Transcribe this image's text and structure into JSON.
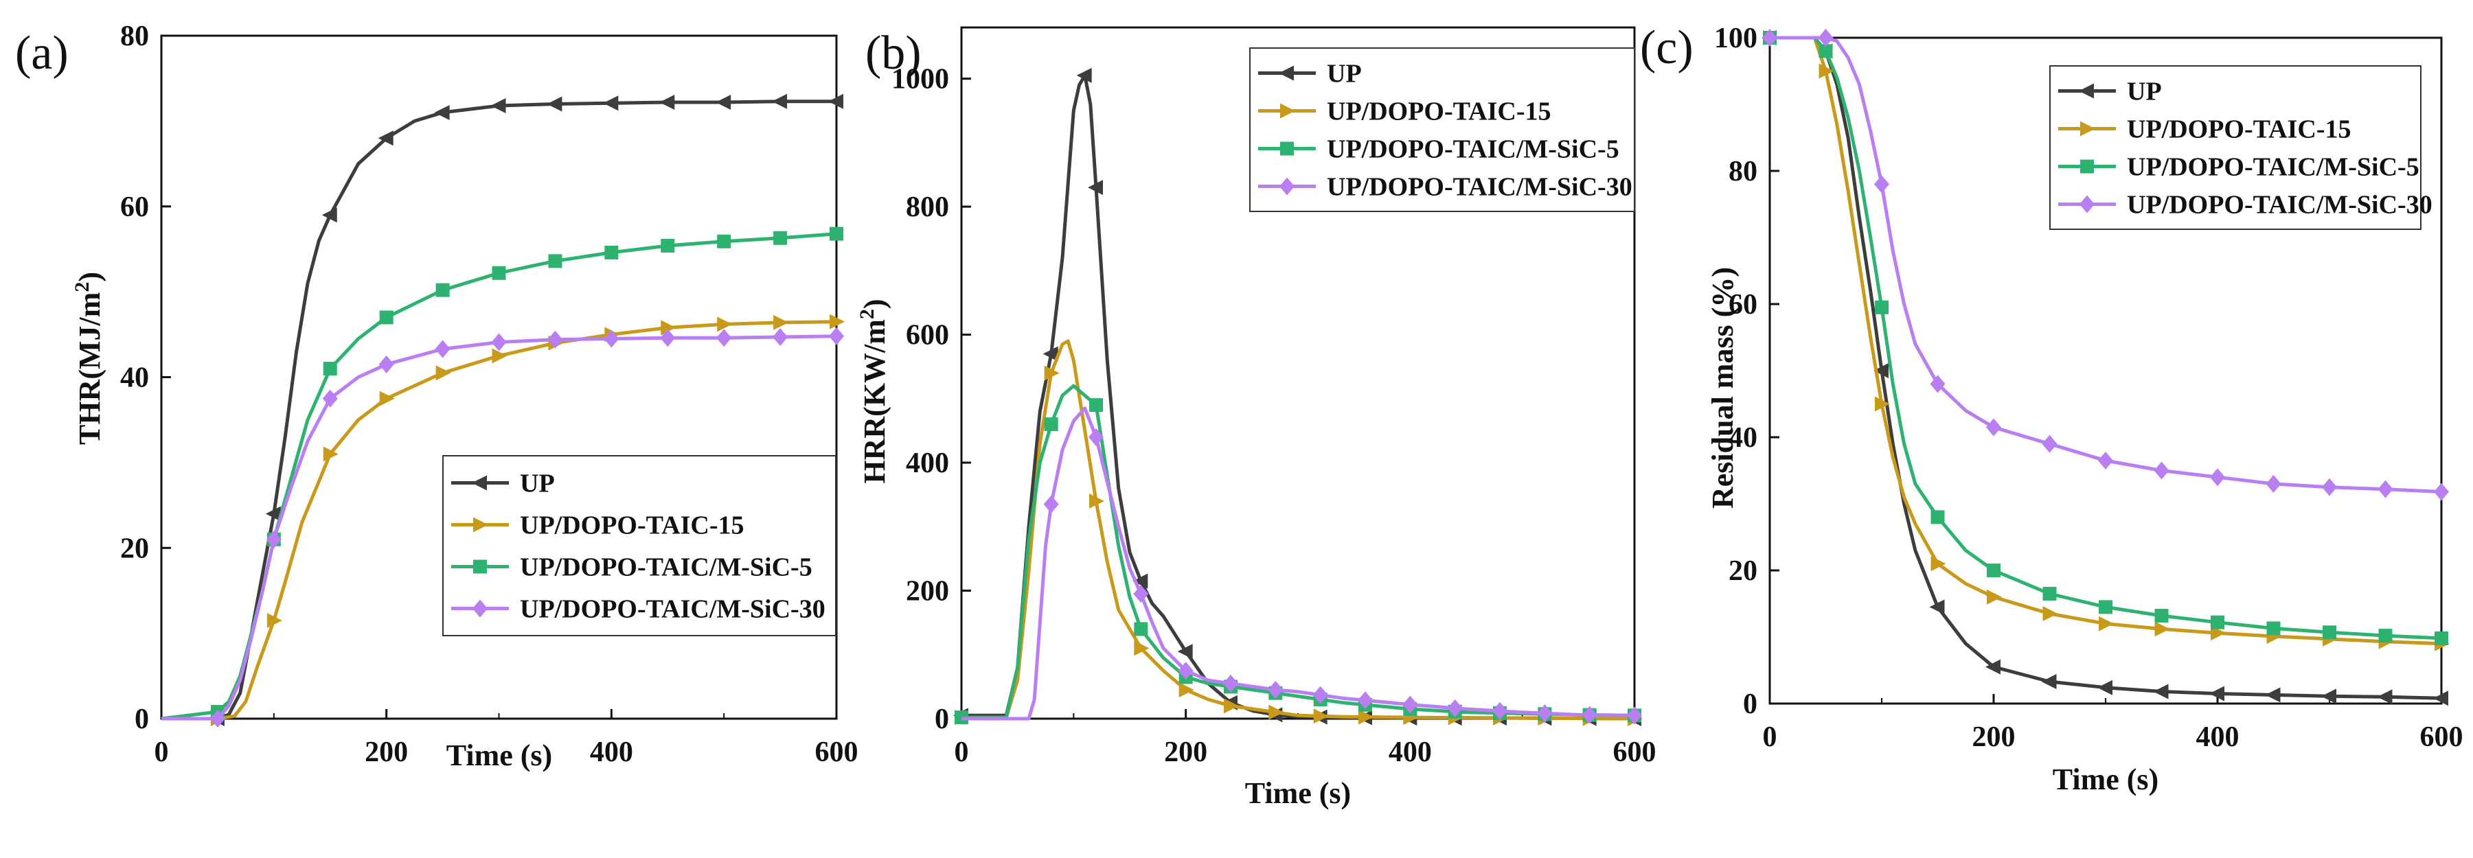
{
  "figure": {
    "description_free": true
  },
  "colors": {
    "UP": "#3d3d3d",
    "UP/DOPO-TAIC-15": "#c99a1a",
    "UP/DOPO-TAIC/M-SiC-5": "#2db36f",
    "UP/DOPO-TAIC/M-SiC-30": "#b97ef2",
    "axis": "#111111"
  },
  "chart_data": [
    {
      "panel_label": "(a)",
      "type": "line",
      "title": "",
      "xlabel": "Time (s)",
      "ylabel": "THR(MJ/m2)",
      "ylabel_main": "THR(MJ/m",
      "ylabel_sup": "2",
      "ylabel_close": ")",
      "xlim": [
        0,
        600
      ],
      "ylim": [
        0,
        80
      ],
      "xticks": [
        0,
        200,
        400,
        600
      ],
      "yticks": [
        0,
        20,
        40,
        60,
        80
      ],
      "xtick_labels": [
        "0",
        "200",
        "400",
        "600"
      ],
      "ytick_labels": [
        "0",
        "20",
        "40",
        "60",
        "80"
      ],
      "legend_position": "center-right",
      "series": [
        {
          "name": "UP",
          "marker": "triangle-left",
          "x": [
            0,
            50,
            60,
            70,
            80,
            90,
            100,
            110,
            120,
            130,
            140,
            150,
            175,
            200,
            225,
            250,
            300,
            350,
            400,
            450,
            500,
            550,
            600
          ],
          "y": [
            0,
            0,
            0.5,
            3,
            10,
            17,
            24,
            33,
            43,
            51,
            56,
            59,
            65,
            68,
            70,
            71,
            71.8,
            72,
            72.1,
            72.2,
            72.2,
            72.3,
            72.3
          ],
          "marker_x": [
            50,
            100,
            150,
            200,
            250,
            300,
            350,
            400,
            450,
            500,
            550,
            600
          ]
        },
        {
          "name": "UP/DOPO-TAIC-15",
          "marker": "triangle-right",
          "x": [
            0,
            50,
            65,
            75,
            85,
            100,
            110,
            125,
            150,
            175,
            200,
            250,
            300,
            350,
            400,
            450,
            500,
            550,
            600
          ],
          "y": [
            0,
            0,
            0.3,
            2,
            6,
            11.5,
            16,
            23,
            31,
            35,
            37.5,
            40.5,
            42.5,
            44,
            45,
            45.8,
            46.2,
            46.4,
            46.5
          ],
          "marker_x": [
            50,
            100,
            150,
            200,
            250,
            300,
            350,
            400,
            450,
            500,
            550,
            600
          ]
        },
        {
          "name": "UP/DOPO-TAIC/M-SiC-5",
          "marker": "square",
          "x": [
            0,
            50,
            60,
            70,
            80,
            90,
            100,
            115,
            130,
            150,
            175,
            200,
            250,
            300,
            350,
            400,
            450,
            500,
            550,
            600
          ],
          "y": [
            0,
            0.8,
            2,
            5,
            10,
            15,
            21,
            28,
            35,
            41,
            44.5,
            47,
            50.2,
            52.2,
            53.6,
            54.6,
            55.4,
            55.9,
            56.3,
            56.8
          ],
          "marker_x": [
            50,
            100,
            150,
            200,
            250,
            300,
            350,
            400,
            450,
            500,
            550,
            600
          ]
        },
        {
          "name": "UP/DOPO-TAIC/M-SiC-30",
          "marker": "diamond",
          "x": [
            0,
            50,
            60,
            70,
            80,
            90,
            100,
            115,
            130,
            150,
            175,
            200,
            250,
            300,
            350,
            400,
            450,
            500,
            550,
            600
          ],
          "y": [
            0,
            0,
            1.5,
            4.5,
            9.5,
            15,
            21,
            27,
            32.5,
            37.5,
            40,
            41.5,
            43.3,
            44.1,
            44.4,
            44.5,
            44.6,
            44.6,
            44.7,
            44.8
          ],
          "marker_x": [
            50,
            100,
            150,
            200,
            250,
            300,
            350,
            400,
            450,
            500,
            550,
            600
          ]
        }
      ]
    },
    {
      "panel_label": "(b)",
      "type": "line",
      "title": "",
      "xlabel": "Time (s)",
      "ylabel": "HRR(KW/m2)",
      "ylabel_main": "HRR(KW/m",
      "ylabel_sup": "2",
      "ylabel_close": ")",
      "xlim": [
        0,
        600
      ],
      "ylim": [
        0,
        1080
      ],
      "xticks": [
        0,
        200,
        400,
        600
      ],
      "yticks": [
        0,
        200,
        400,
        600,
        800,
        1000
      ],
      "xtick_labels": [
        "0",
        "200",
        "400",
        "600"
      ],
      "ytick_labels": [
        "0",
        "200",
        "400",
        "600",
        "800",
        "1000"
      ],
      "legend_position": "top-right",
      "series": [
        {
          "name": "UP",
          "marker": "triangle-left",
          "x": [
            0,
            40,
            50,
            60,
            70,
            80,
            90,
            100,
            105,
            110,
            115,
            120,
            130,
            140,
            150,
            160,
            170,
            180,
            200,
            220,
            240,
            260,
            280,
            300,
            340,
            400,
            500,
            600
          ],
          "y": [
            5,
            5,
            80,
            300,
            480,
            570,
            720,
            950,
            990,
            1005,
            960,
            830,
            560,
            360,
            260,
            215,
            180,
            160,
            105,
            55,
            25,
            12,
            6,
            3,
            2,
            1,
            1,
            0
          ],
          "marker_x": [
            0,
            80,
            110,
            120,
            160,
            200,
            240,
            280,
            320,
            360,
            400,
            440,
            480,
            520,
            560,
            600
          ]
        },
        {
          "name": "UP/DOPO-TAIC-15",
          "marker": "triangle-right",
          "x": [
            0,
            40,
            50,
            60,
            70,
            80,
            90,
            95,
            100,
            110,
            120,
            130,
            140,
            160,
            180,
            200,
            220,
            240,
            260,
            280,
            300,
            340,
            400,
            500,
            600
          ],
          "y": [
            2,
            2,
            60,
            230,
            430,
            540,
            585,
            590,
            560,
            450,
            340,
            245,
            170,
            110,
            75,
            45,
            30,
            20,
            15,
            10,
            5,
            3,
            2,
            1,
            0
          ],
          "marker_x": [
            0,
            80,
            120,
            160,
            200,
            240,
            280,
            320,
            360,
            400,
            440,
            480,
            520,
            560,
            600
          ]
        },
        {
          "name": "UP/DOPO-TAIC/M-SiC-5",
          "marker": "square",
          "x": [
            0,
            40,
            50,
            60,
            70,
            80,
            90,
            100,
            110,
            120,
            130,
            140,
            150,
            160,
            180,
            200,
            220,
            240,
            260,
            280,
            300,
            340,
            400,
            450,
            500,
            550,
            600
          ],
          "y": [
            2,
            2,
            80,
            280,
            400,
            460,
            505,
            520,
            505,
            490,
            380,
            270,
            190,
            140,
            95,
            65,
            55,
            50,
            45,
            40,
            35,
            25,
            15,
            10,
            8,
            6,
            5
          ],
          "marker_x": [
            0,
            80,
            120,
            160,
            200,
            240,
            280,
            320,
            360,
            400,
            440,
            480,
            520,
            560,
            600
          ]
        },
        {
          "name": "UP/DOPO-TAIC/M-SiC-30",
          "marker": "diamond",
          "x": [
            0,
            60,
            65,
            70,
            75,
            80,
            90,
            100,
            110,
            120,
            130,
            140,
            150,
            160,
            170,
            180,
            200,
            220,
            240,
            260,
            280,
            300,
            340,
            400,
            450,
            500,
            550,
            600
          ],
          "y": [
            0,
            0,
            30,
            150,
            270,
            335,
            420,
            465,
            485,
            440,
            370,
            300,
            235,
            195,
            150,
            110,
            75,
            60,
            55,
            50,
            45,
            42,
            32,
            22,
            15,
            10,
            6,
            5
          ],
          "marker_x": [
            80,
            120,
            160,
            200,
            240,
            280,
            320,
            360,
            400,
            440,
            480,
            520,
            560,
            600
          ]
        }
      ]
    },
    {
      "panel_label": "(c)",
      "type": "line",
      "title": "",
      "xlabel": "Time (s)",
      "ylabel": "Residual mass (%)",
      "xlim": [
        0,
        600
      ],
      "ylim": [
        0,
        100
      ],
      "xticks": [
        0,
        200,
        400,
        600
      ],
      "yticks": [
        0,
        20,
        40,
        60,
        80,
        100
      ],
      "xtick_labels": [
        "0",
        "200",
        "400",
        "600"
      ],
      "ytick_labels": [
        "0",
        "20",
        "40",
        "60",
        "80",
        "100"
      ],
      "legend_position": "top-right",
      "series": [
        {
          "name": "UP",
          "marker": "triangle-left",
          "x": [
            0,
            40,
            50,
            60,
            70,
            80,
            90,
            100,
            110,
            120,
            130,
            150,
            175,
            200,
            250,
            300,
            350,
            400,
            450,
            500,
            550,
            600
          ],
          "y": [
            100,
            100,
            98,
            93,
            85,
            73,
            62,
            50,
            39,
            30,
            23,
            14.5,
            9,
            5.5,
            3.3,
            2.4,
            1.8,
            1.5,
            1.3,
            1.1,
            1,
            0.8
          ],
          "marker_x": [
            0,
            50,
            100,
            150,
            200,
            250,
            300,
            350,
            400,
            450,
            500,
            550,
            600
          ]
        },
        {
          "name": "UP/DOPO-TAIC-15",
          "marker": "triangle-right",
          "x": [
            0,
            40,
            50,
            60,
            70,
            80,
            90,
            100,
            110,
            120,
            130,
            150,
            175,
            200,
            250,
            300,
            350,
            400,
            450,
            500,
            550,
            600
          ],
          "y": [
            100,
            100,
            95,
            87,
            77,
            66,
            55,
            45,
            37,
            31,
            27,
            21,
            18,
            16,
            13.5,
            12,
            11.2,
            10.6,
            10.1,
            9.7,
            9.3,
            9
          ],
          "marker_x": [
            0,
            50,
            100,
            150,
            200,
            250,
            300,
            350,
            400,
            450,
            500,
            550,
            600
          ]
        },
        {
          "name": "UP/DOPO-TAIC/M-SiC-5",
          "marker": "square",
          "x": [
            0,
            40,
            50,
            60,
            70,
            80,
            90,
            100,
            110,
            120,
            130,
            150,
            175,
            200,
            250,
            300,
            350,
            400,
            450,
            500,
            550,
            600
          ],
          "y": [
            100,
            100,
            98,
            94,
            88,
            80,
            70,
            59.5,
            48,
            39,
            33,
            28,
            23,
            20,
            16.5,
            14.5,
            13.2,
            12.2,
            11.3,
            10.7,
            10.2,
            9.8
          ],
          "marker_x": [
            0,
            50,
            100,
            150,
            200,
            250,
            300,
            350,
            400,
            450,
            500,
            550,
            600
          ]
        },
        {
          "name": "UP/DOPO-TAIC/M-SiC-30",
          "marker": "diamond",
          "x": [
            0,
            50,
            60,
            70,
            80,
            90,
            100,
            110,
            120,
            130,
            150,
            175,
            200,
            250,
            300,
            350,
            400,
            450,
            500,
            550,
            600
          ],
          "y": [
            100,
            100,
            99.5,
            97,
            93,
            86,
            78,
            68,
            60,
            54,
            48,
            44,
            41.5,
            39,
            36.5,
            35,
            34,
            33,
            32.5,
            32.2,
            31.8
          ],
          "marker_x": [
            0,
            50,
            100,
            150,
            200,
            250,
            300,
            350,
            400,
            450,
            500,
            550,
            600
          ]
        }
      ]
    }
  ]
}
